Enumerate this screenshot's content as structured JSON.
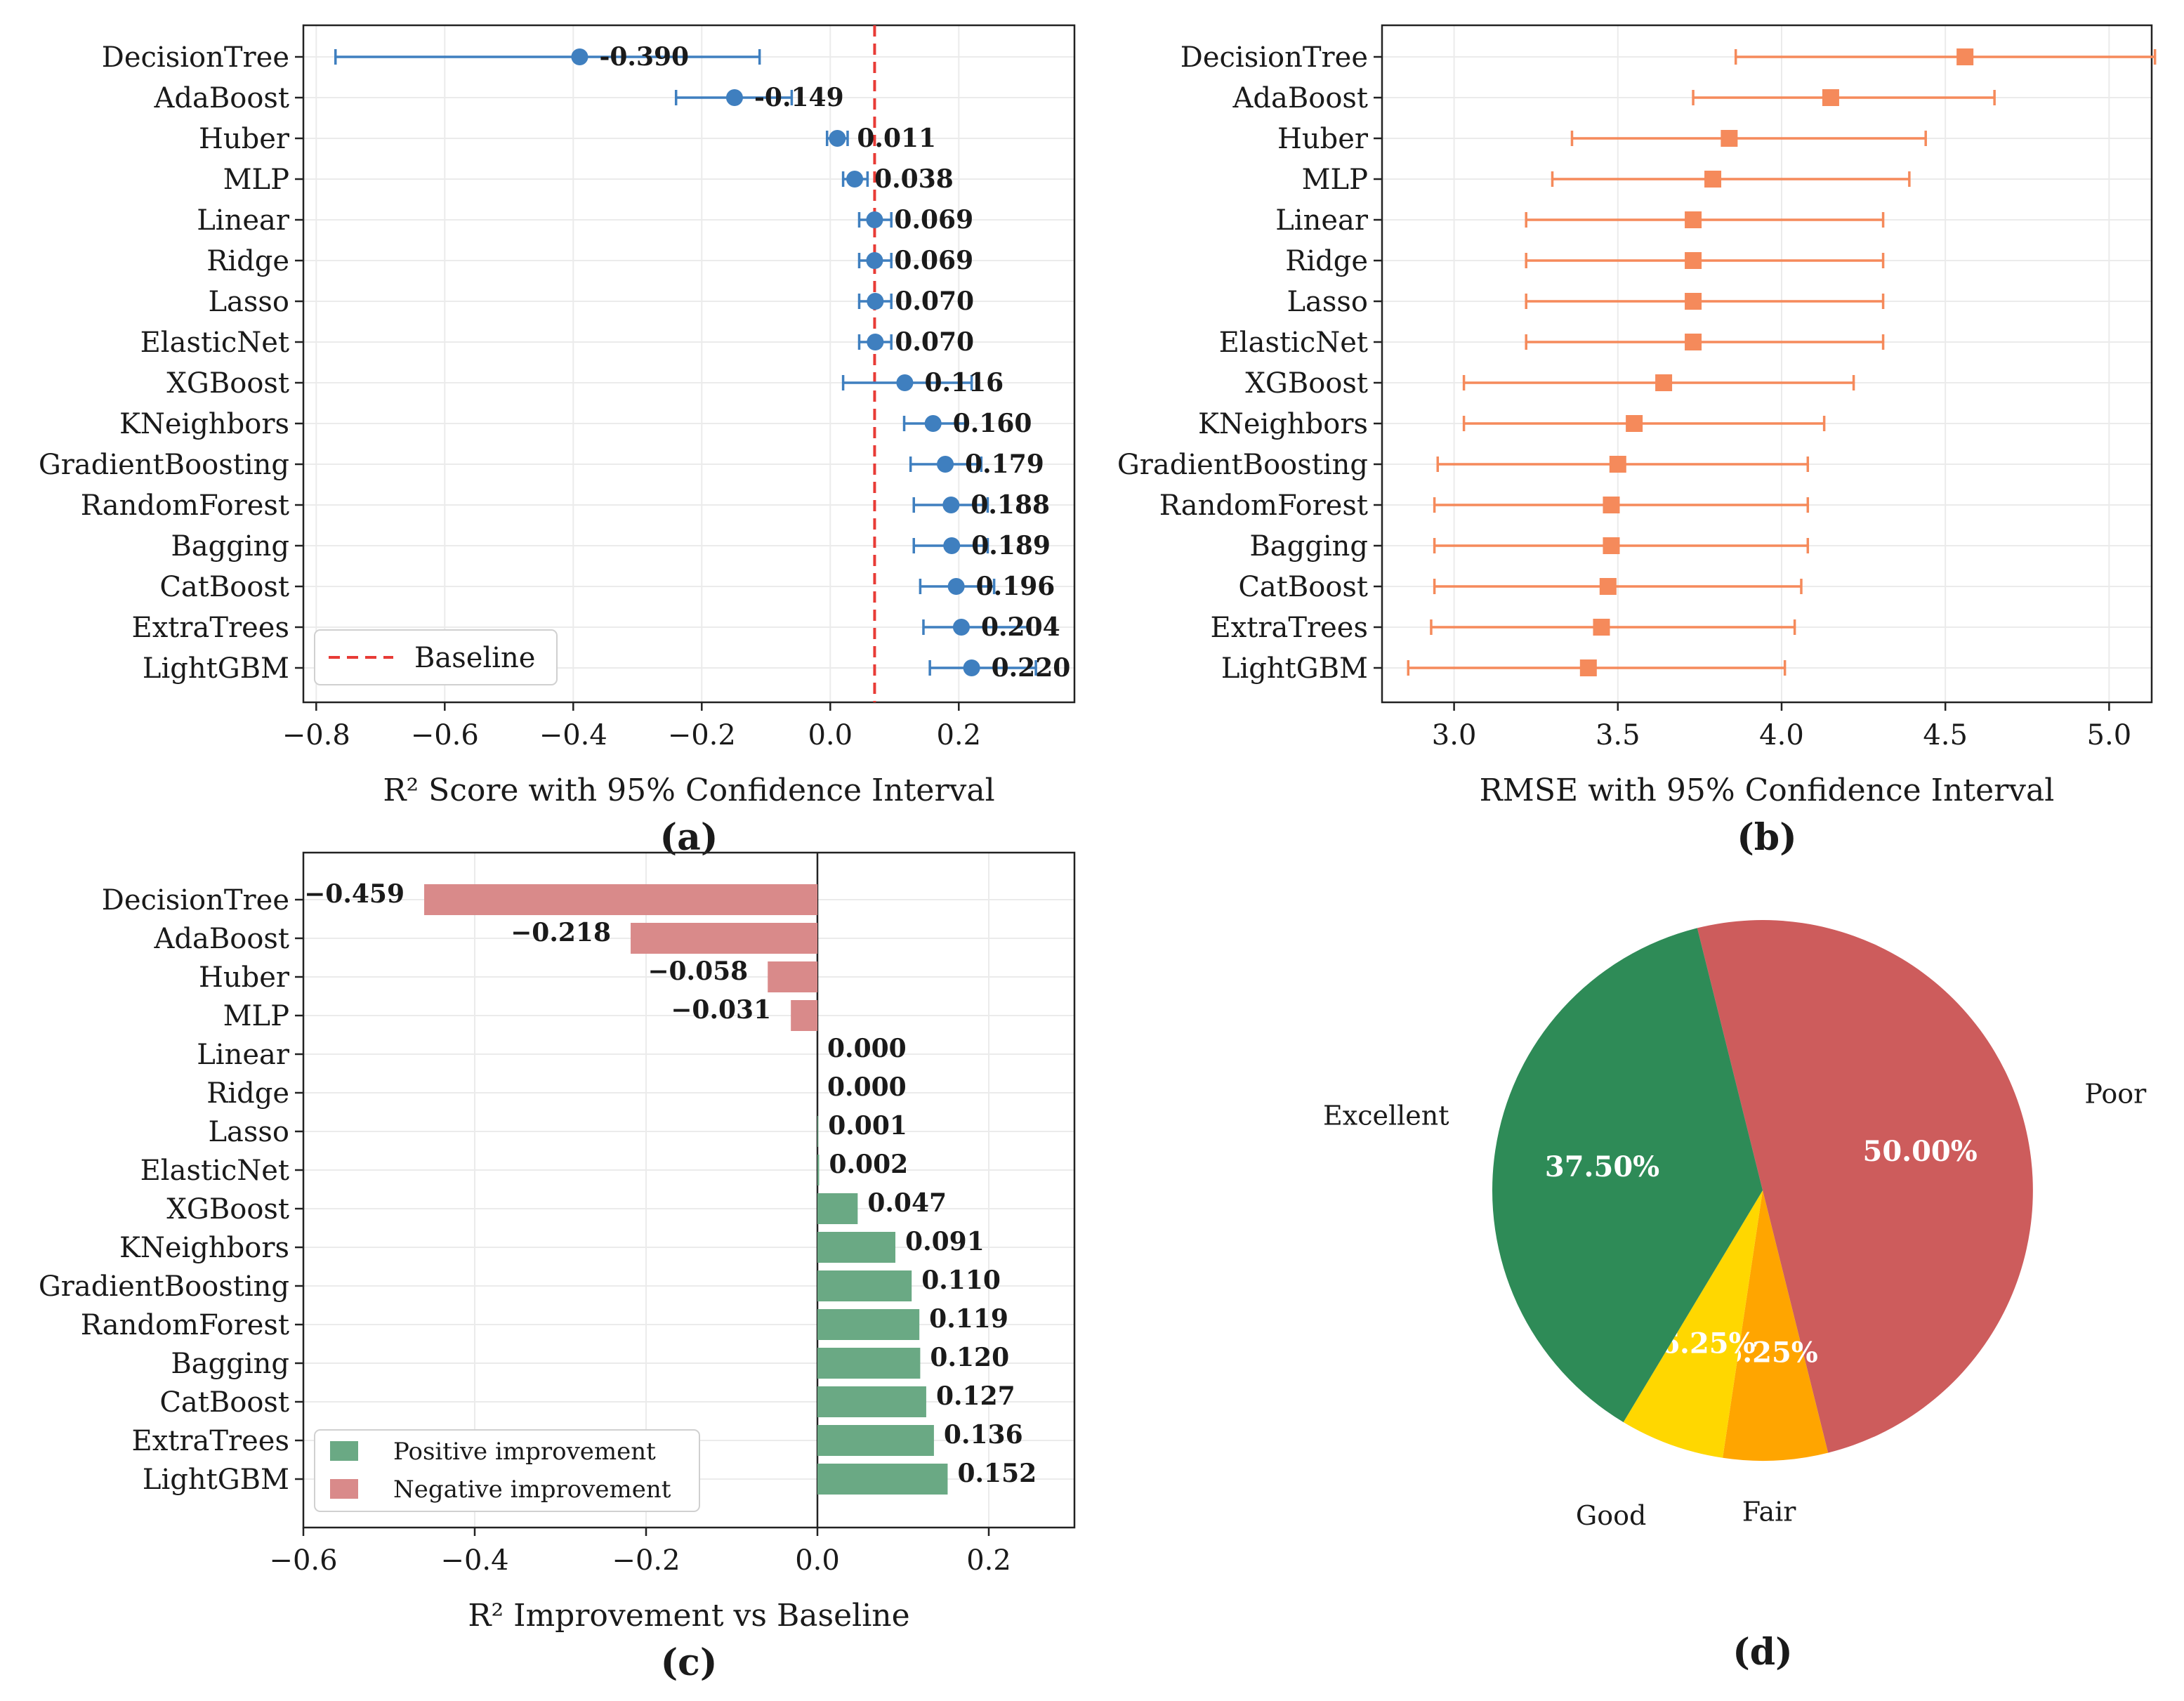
{
  "chart_data": [
    {
      "panel": "(a)",
      "type": "scatter",
      "title": "",
      "xlabel": "R² Score with 95% Confidence Interval",
      "xlim": [
        -0.82,
        0.38
      ],
      "xticks": [
        -0.8,
        -0.6,
        -0.4,
        -0.2,
        0.0,
        0.2
      ],
      "xtick_labels": [
        "−0.8",
        "−0.6",
        "−0.4",
        "−0.2",
        "0.0",
        "0.2"
      ],
      "categories": [
        "DecisionTree",
        "AdaBoost",
        "Huber",
        "MLP",
        "Linear",
        "Ridge",
        "Lasso",
        "ElasticNet",
        "XGBoost",
        "KNeighbors",
        "GradientBoosting",
        "RandomForest",
        "Bagging",
        "CatBoost",
        "ExtraTrees",
        "LightGBM"
      ],
      "values": [
        -0.39,
        -0.149,
        0.011,
        0.038,
        0.069,
        0.069,
        0.07,
        0.07,
        0.116,
        0.16,
        0.179,
        0.188,
        0.189,
        0.196,
        0.204,
        0.22
      ],
      "value_labels": [
        "-0.390",
        "-0.149",
        "0.011",
        "0.038",
        "0.069",
        "0.069",
        "0.070",
        "0.070",
        "0.116",
        "0.160",
        "0.179",
        "0.188",
        "0.189",
        "0.196",
        "0.204",
        "0.220"
      ],
      "ci_low": [
        -0.77,
        -0.24,
        -0.005,
        0.02,
        0.045,
        0.045,
        0.045,
        0.045,
        0.02,
        0.115,
        0.125,
        0.13,
        0.13,
        0.14,
        0.145,
        0.155
      ],
      "ci_high": [
        -0.11,
        -0.06,
        0.027,
        0.058,
        0.095,
        0.095,
        0.095,
        0.095,
        0.22,
        0.21,
        0.235,
        0.245,
        0.245,
        0.255,
        0.31,
        0.32
      ],
      "baseline": 0.069,
      "legend": [
        {
          "label": "Baseline",
          "color": "#e83b36"
        }
      ],
      "legend_position": "lower-left",
      "color": "#3f7fbf"
    },
    {
      "panel": "(b)",
      "type": "scatter",
      "title": "",
      "xlabel": "RMSE with 95% Confidence Interval",
      "xlim": [
        2.78,
        5.13
      ],
      "xticks": [
        3.0,
        3.5,
        4.0,
        4.5,
        5.0
      ],
      "xtick_labels": [
        "3.0",
        "3.5",
        "4.0",
        "4.5",
        "5.0"
      ],
      "categories": [
        "DecisionTree",
        "AdaBoost",
        "Huber",
        "MLP",
        "Linear",
        "Ridge",
        "Lasso",
        "ElasticNet",
        "XGBoost",
        "KNeighbors",
        "GradientBoosting",
        "RandomForest",
        "Bagging",
        "CatBoost",
        "ExtraTrees",
        "LightGBM"
      ],
      "values": [
        4.56,
        4.15,
        3.84,
        3.79,
        3.73,
        3.73,
        3.73,
        3.73,
        3.64,
        3.55,
        3.5,
        3.48,
        3.48,
        3.47,
        3.45,
        3.41
      ],
      "ci_low": [
        3.86,
        3.73,
        3.36,
        3.3,
        3.22,
        3.22,
        3.22,
        3.22,
        3.03,
        3.03,
        2.95,
        2.94,
        2.94,
        2.94,
        2.93,
        2.86
      ],
      "ci_high": [
        5.14,
        4.65,
        4.44,
        4.39,
        4.31,
        4.31,
        4.31,
        4.31,
        4.22,
        4.13,
        4.08,
        4.08,
        4.08,
        4.06,
        4.04,
        4.01
      ],
      "color": "#f58a5b"
    },
    {
      "panel": "(c)",
      "type": "bar",
      "orientation": "horizontal",
      "title": "",
      "xlabel": "R² Improvement vs Baseline",
      "xlim": [
        -0.6,
        0.3
      ],
      "xticks": [
        -0.6,
        -0.4,
        -0.2,
        0.0,
        0.2
      ],
      "xtick_labels": [
        "−0.6",
        "−0.4",
        "−0.2",
        "0.0",
        "0.2"
      ],
      "categories": [
        "DecisionTree",
        "AdaBoost",
        "Huber",
        "MLP",
        "Linear",
        "Ridge",
        "Lasso",
        "ElasticNet",
        "XGBoost",
        "KNeighbors",
        "GradientBoosting",
        "RandomForest",
        "Bagging",
        "CatBoost",
        "ExtraTrees",
        "LightGBM"
      ],
      "values": [
        -0.459,
        -0.218,
        -0.058,
        -0.031,
        0.0,
        0.0,
        0.001,
        0.002,
        0.047,
        0.091,
        0.11,
        0.119,
        0.12,
        0.127,
        0.136,
        0.152
      ],
      "value_labels": [
        "−0.459",
        "−0.218",
        "−0.058",
        "−0.031",
        "0.000",
        "0.000",
        "0.001",
        "0.002",
        "0.047",
        "0.091",
        "0.110",
        "0.119",
        "0.120",
        "0.127",
        "0.136",
        "0.152"
      ],
      "legend": [
        {
          "label": "Positive improvement",
          "color": "#6aa984"
        },
        {
          "label": "Negative improvement",
          "color": "#d98a8a"
        }
      ],
      "legend_position": "lower-left"
    },
    {
      "panel": "(d)",
      "type": "pie",
      "title": "",
      "slices": [
        {
          "label": "Poor",
          "value": 50.0,
          "pct": "50.00%",
          "color": "#cd5c5c"
        },
        {
          "label": "Fair",
          "value": 6.25,
          "pct": "6.25%",
          "color": "#ffa500"
        },
        {
          "label": "Good",
          "value": 6.25,
          "pct": "6.25%",
          "color": "#ffd700"
        },
        {
          "label": "Excellent",
          "value": 37.5,
          "pct": "37.50%",
          "color": "#2e8b57"
        }
      ]
    }
  ]
}
